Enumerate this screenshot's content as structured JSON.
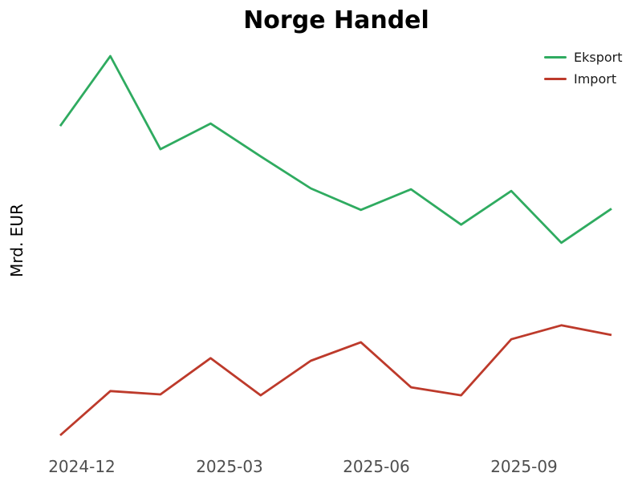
{
  "chart_data": {
    "type": "line",
    "title": "Norge Handel",
    "ylabel": "Mrd. EUR",
    "xlabel": "",
    "x": [
      "2024-11",
      "2024-12",
      "2025-01",
      "2025-02",
      "2025-03",
      "2025-04",
      "2025-05",
      "2025-06",
      "2025-07",
      "2025-08",
      "2025-09",
      "2025-10"
    ],
    "xticks": [
      "2024-12",
      "2025-03",
      "2025-06",
      "2025-09"
    ],
    "series": [
      {
        "name": "Eksport",
        "color": "#2fab60",
        "values": [
          14.34,
          16.0,
          13.79,
          14.4,
          13.62,
          12.86,
          12.35,
          12.84,
          12.0,
          12.8,
          11.57,
          12.38
        ]
      },
      {
        "name": "Import",
        "color": "#bd3a2b",
        "values": [
          7.0,
          8.05,
          7.97,
          8.83,
          7.95,
          8.77,
          9.21,
          8.14,
          7.95,
          9.28,
          9.61,
          9.38
        ]
      }
    ],
    "ylim": [
      7,
      16
    ],
    "grid": false,
    "legend_position": "upper right"
  }
}
